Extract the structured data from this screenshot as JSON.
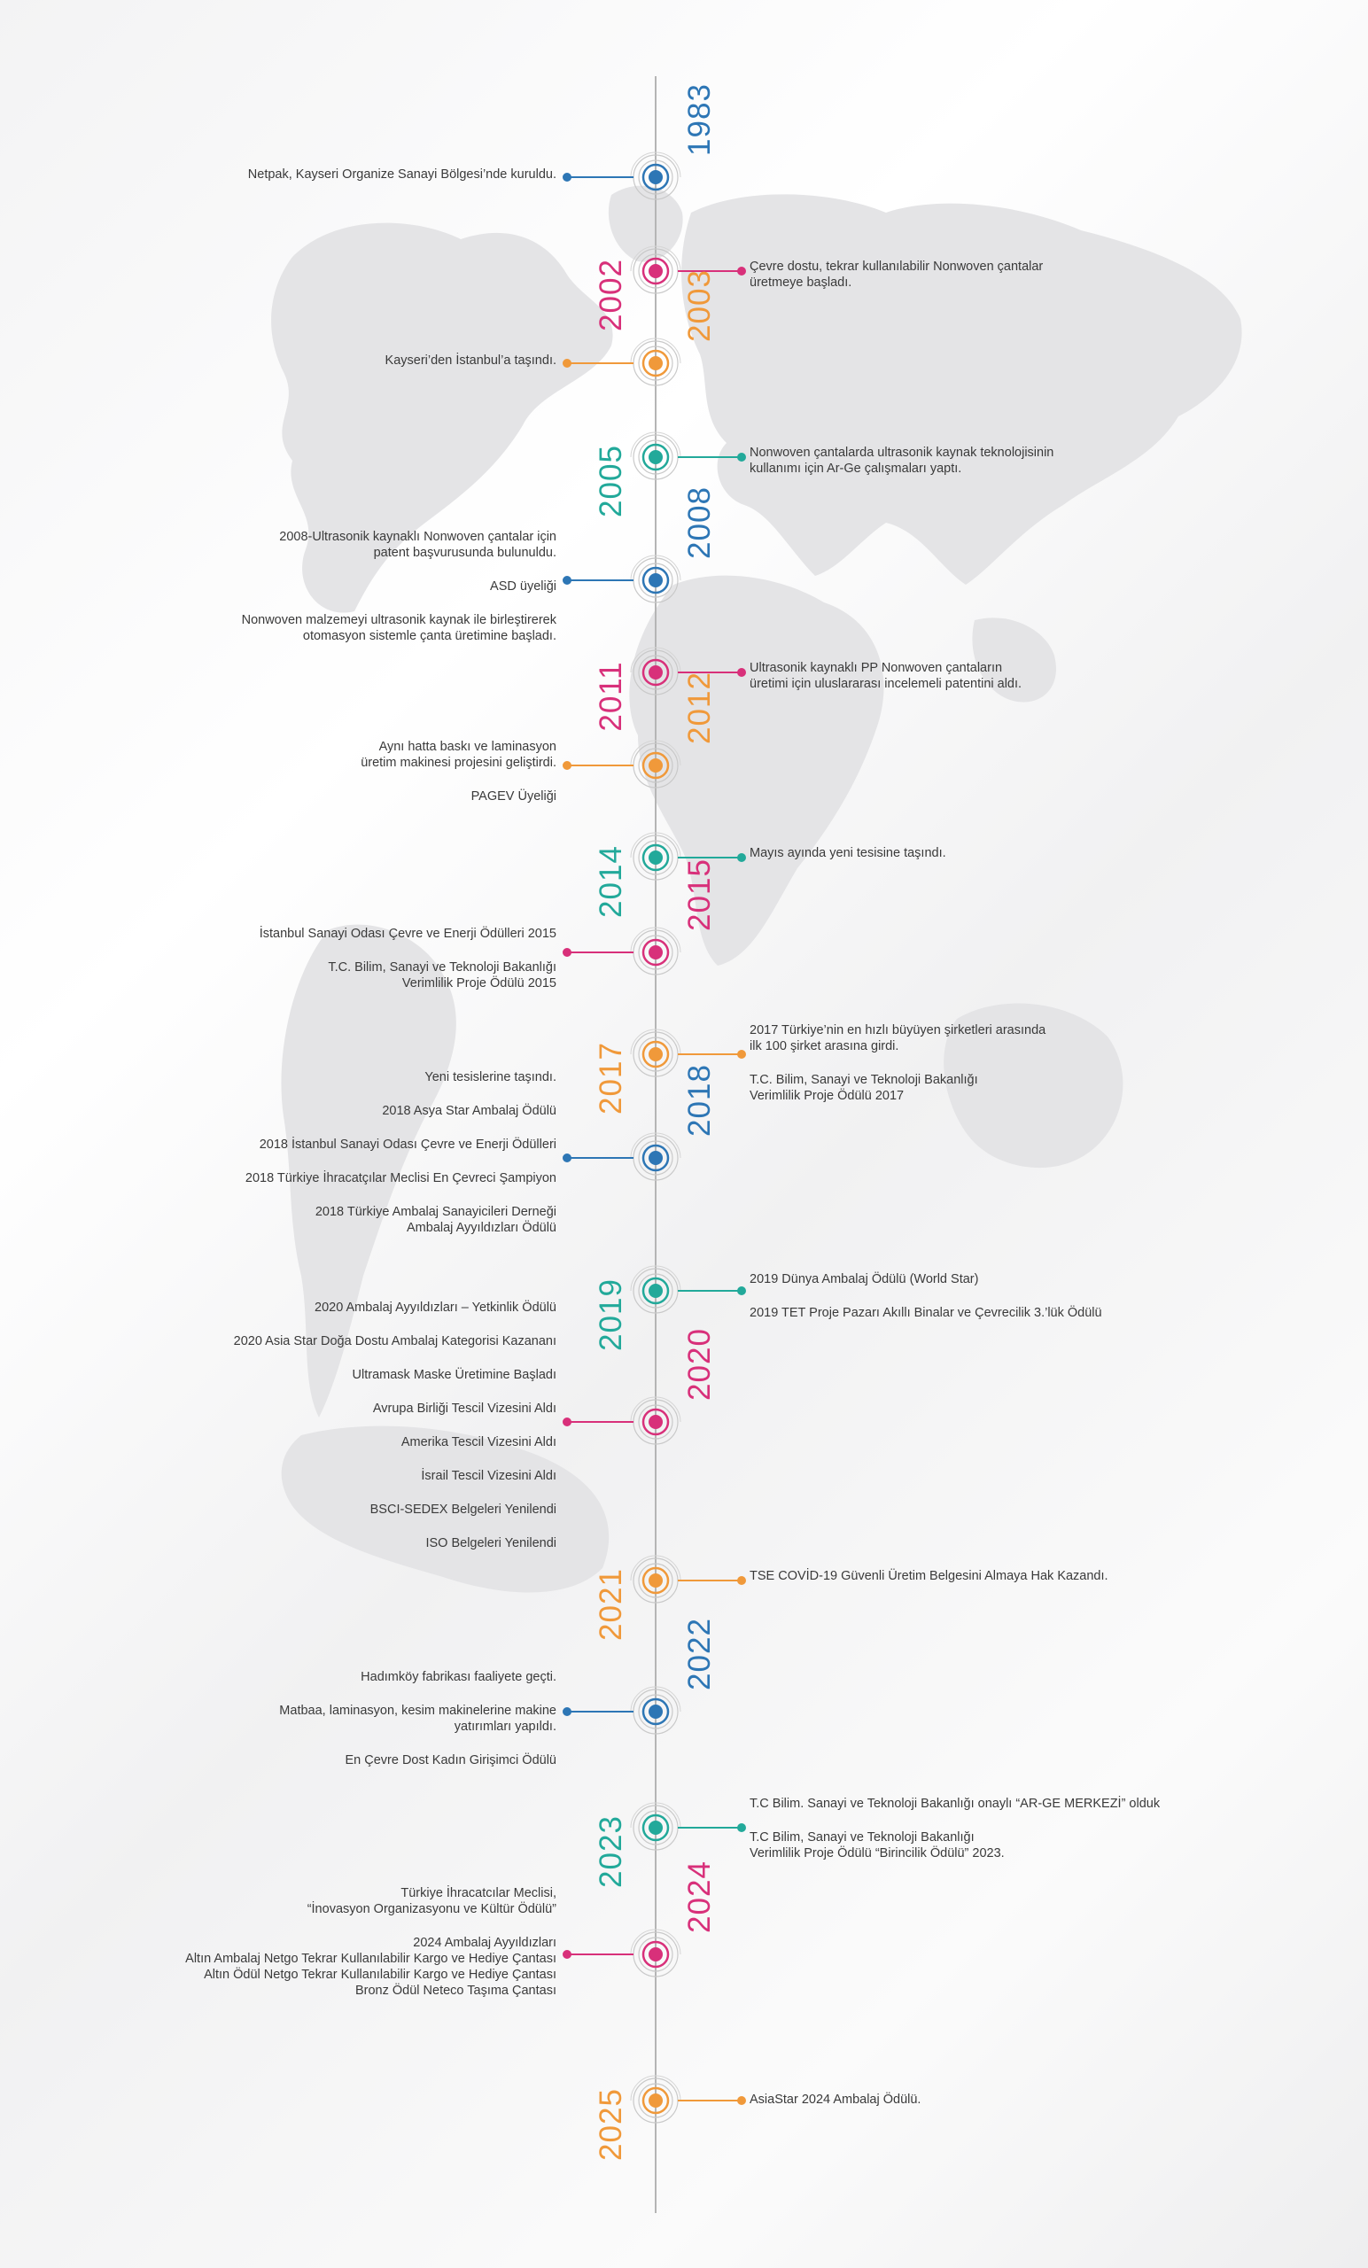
{
  "colors": {
    "blue": "#2d76b5",
    "pink": "#d8307a",
    "orange": "#f0993a",
    "teal": "#22a99a",
    "line": "#b5b5b5",
    "map": "#e4e4e6"
  },
  "timeline": [
    {
      "year": "1983",
      "color": "blue",
      "year_side": "right",
      "text_side": "left",
      "entries": [
        "Netpak, Kayseri Organize Sanayi Bölgesi’nde kuruldu."
      ]
    },
    {
      "year": "2002",
      "color": "pink",
      "year_side": "left",
      "text_side": "right",
      "entries": [
        "Çevre dostu, tekrar kullanılabilir Nonwoven çantalar\nüretmeye başladı."
      ]
    },
    {
      "year": "2003",
      "color": "orange",
      "year_side": "right",
      "text_side": "left",
      "entries": [
        "Kayseri’den İstanbul’a taşındı."
      ]
    },
    {
      "year": "2005",
      "color": "teal",
      "year_side": "left",
      "text_side": "right",
      "entries": [
        "Nonwoven çantalarda ultrasonik kaynak teknolojisinin\nkullanımı için Ar-Ge çalışmaları yaptı."
      ]
    },
    {
      "year": "2008",
      "color": "blue",
      "year_side": "right",
      "text_side": "left",
      "entries": [
        "2008-Ultrasonik kaynaklı Nonwoven çantalar için\npatent başvurusunda bulunuldu.",
        "ASD üyeliği",
        "Nonwoven malzemeyi ultrasonik kaynak ile birleştirerek\notomasyon sistemle çanta üretimine başladı."
      ]
    },
    {
      "year": "2011",
      "color": "pink",
      "year_side": "left",
      "text_side": "right",
      "entries": [
        "Ultrasonik kaynaklı PP Nonwoven çantaların\nüretimi için uluslararası incelemeli patentini aldı."
      ]
    },
    {
      "year": "2012",
      "color": "orange",
      "year_side": "right",
      "text_side": "left",
      "entries": [
        "Aynı hatta baskı ve laminasyon\nüretim makinesi projesini geliştirdi.",
        "PAGEV Üyeliği"
      ]
    },
    {
      "year": "2014",
      "color": "teal",
      "year_side": "left",
      "text_side": "right",
      "entries": [
        "Mayıs ayında yeni tesisine taşındı."
      ]
    },
    {
      "year": "2015",
      "color": "pink",
      "year_side": "right",
      "text_side": "left",
      "entries": [
        "İstanbul Sanayi Odası Çevre ve Enerji Ödülleri 2015",
        "T.C. Bilim, Sanayi ve Teknoloji Bakanlığı\nVerimlilik Proje Ödülü 2015"
      ]
    },
    {
      "year": "2017",
      "color": "orange",
      "year_side": "left",
      "text_side": "right",
      "entries": [
        "2017 Türkiye’nin en hızlı büyüyen şirketleri arasında\nilk 100 şirket arasına girdi.",
        "T.C. Bilim, Sanayi ve Teknoloji Bakanlığı\nVerimlilik Proje Ödülü 2017"
      ]
    },
    {
      "year": "2018",
      "color": "blue",
      "year_side": "right",
      "text_side": "left",
      "entries": [
        "Yeni tesislerine taşındı.",
        "2018 Asya Star Ambalaj Ödülü",
        "2018 İstanbul Sanayi Odası Çevre ve Enerji Ödülleri",
        "2018 Türkiye İhracatçılar Meclisi En Çevreci Şampiyon",
        "2018 Türkiye Ambalaj Sanayicileri Derneği\nAmbalaj Ayyıldızları Ödülü"
      ]
    },
    {
      "year": "2019",
      "color": "teal",
      "year_side": "left",
      "text_side": "right",
      "entries": [
        "2019 Dünya Ambalaj Ödülü (World Star)",
        "2019 TET Proje Pazarı Akıllı Binalar ve Çevrecilik 3.’lük Ödülü"
      ]
    },
    {
      "year": "2020",
      "color": "pink",
      "year_side": "right",
      "text_side": "left",
      "entries": [
        "2020 Ambalaj Ayyıldızları – Yetkinlik Ödülü",
        "2020 Asia Star Doğa Dostu Ambalaj Kategorisi Kazananı",
        "Ultramask Maske Üretimine Başladı",
        "Avrupa Birliği Tescil Vizesini Aldı",
        "Amerika Tescil Vizesini Aldı",
        "İsrail Tescil Vizesini Aldı",
        "BSCI-SEDEX Belgeleri Yenilendi",
        "ISO Belgeleri Yenilendi"
      ]
    },
    {
      "year": "2021",
      "color": "orange",
      "year_side": "left",
      "text_side": "right",
      "entries": [
        "TSE COVİD-19 Güvenli Üretim Belgesini Almaya Hak Kazandı."
      ]
    },
    {
      "year": "2022",
      "color": "blue",
      "year_side": "right",
      "text_side": "left",
      "entries": [
        "Hadımköy fabrikası faaliyete geçti.",
        "Matbaa, laminasyon, kesim makinelerine makine\nyatırımları yapıldı.",
        "En Çevre Dost Kadın Girişimci Ödülü"
      ]
    },
    {
      "year": "2023",
      "color": "teal",
      "year_side": "left",
      "text_side": "right",
      "entries": [
        "T.C Bilim. Sanayi ve Teknoloji Bakanlığı onaylı “AR-GE MERKEZİ” olduk",
        "T.C Bilim, Sanayi ve Teknoloji Bakanlığı\nVerimlilik Proje Ödülü “Birincilik Ödülü” 2023."
      ]
    },
    {
      "year": "2024",
      "color": "pink",
      "year_side": "right",
      "text_side": "left",
      "entries": [
        "Türkiye İhracatcılar Meclisi,\n“İnovasyon Organizasyonu ve Kültür Ödülü”",
        "2024 Ambalaj Ayyıldızları\nAltın Ambalaj Netgo Tekrar Kullanılabilir Kargo ve Hediye Çantası\nAltın Ödül Netgo Tekrar Kullanılabilir Kargo ve Hediye Çantası\nBronz Ödül Neteco Taşıma Çantası"
      ]
    },
    {
      "year": "2025",
      "color": "orange",
      "year_side": "left",
      "text_side": "right",
      "entries": [
        "AsiaStar 2024  Ambalaj Ödülü."
      ]
    }
  ]
}
